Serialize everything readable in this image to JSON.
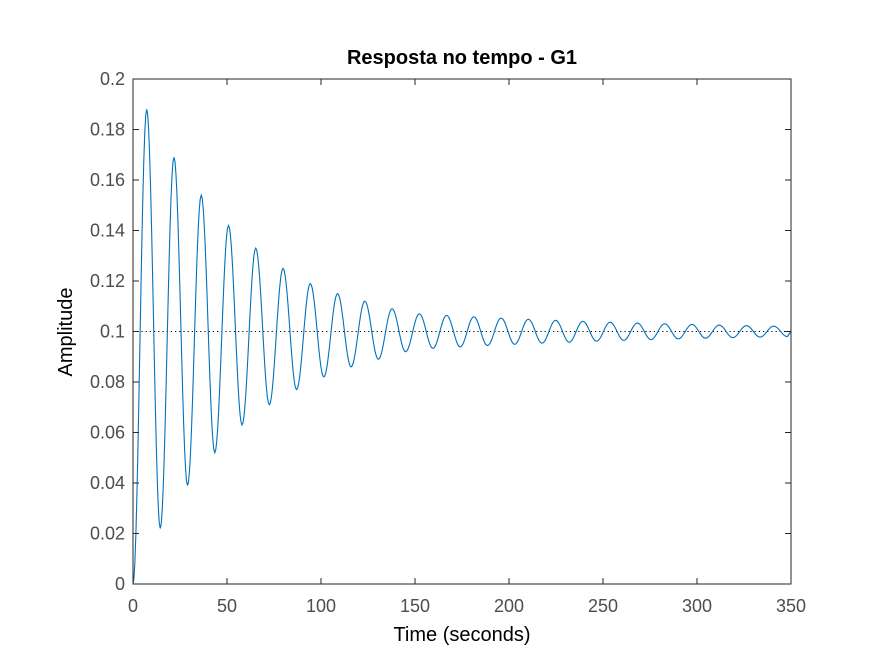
{
  "chart_data": {
    "type": "line",
    "title": "Resposta no tempo - G1",
    "xlabel": "Time (seconds)",
    "ylabel": "Amplitude",
    "xlim": [
      0,
      350
    ],
    "ylim": [
      0,
      0.2
    ],
    "x_ticks": [
      "0",
      "50",
      "100",
      "150",
      "200",
      "250",
      "300",
      "350"
    ],
    "y_ticks": [
      "0",
      "0.02",
      "0.04",
      "0.06",
      "0.08",
      "0.1",
      "0.12",
      "0.14",
      "0.16",
      "0.18",
      "0.2"
    ],
    "grid": false,
    "box": true,
    "series": [
      {
        "style": "solid",
        "color": "#0072bd",
        "kind": "damped step response",
        "steady_state": 0.1,
        "peaks": [
          [
            7.3,
            0.188
          ],
          [
            21.8,
            0.169
          ],
          [
            36.3,
            0.154
          ],
          [
            50.8,
            0.142
          ],
          [
            65.3,
            0.133
          ],
          [
            79.8,
            0.125
          ],
          [
            94.3,
            0.119
          ],
          [
            108.8,
            0.115
          ],
          [
            123.3,
            0.112
          ],
          [
            137.8,
            0.109
          ],
          [
            152.3,
            0.107
          ]
        ],
        "troughs": [
          [
            14.5,
            0.022
          ],
          [
            29.0,
            0.039
          ],
          [
            43.5,
            0.052
          ],
          [
            58.0,
            0.063
          ],
          [
            72.5,
            0.071
          ],
          [
            87.0,
            0.077
          ],
          [
            101.5,
            0.082
          ],
          [
            116.0,
            0.086
          ],
          [
            130.5,
            0.089
          ],
          [
            145.0,
            0.092
          ]
        ],
        "period": 14.5,
        "x_end": 350
      },
      {
        "style": "dotted",
        "color": "#000000",
        "kind": "steady-state reference",
        "values": [
          [
            0,
            0.1
          ],
          [
            350,
            0.1
          ]
        ]
      }
    ]
  }
}
